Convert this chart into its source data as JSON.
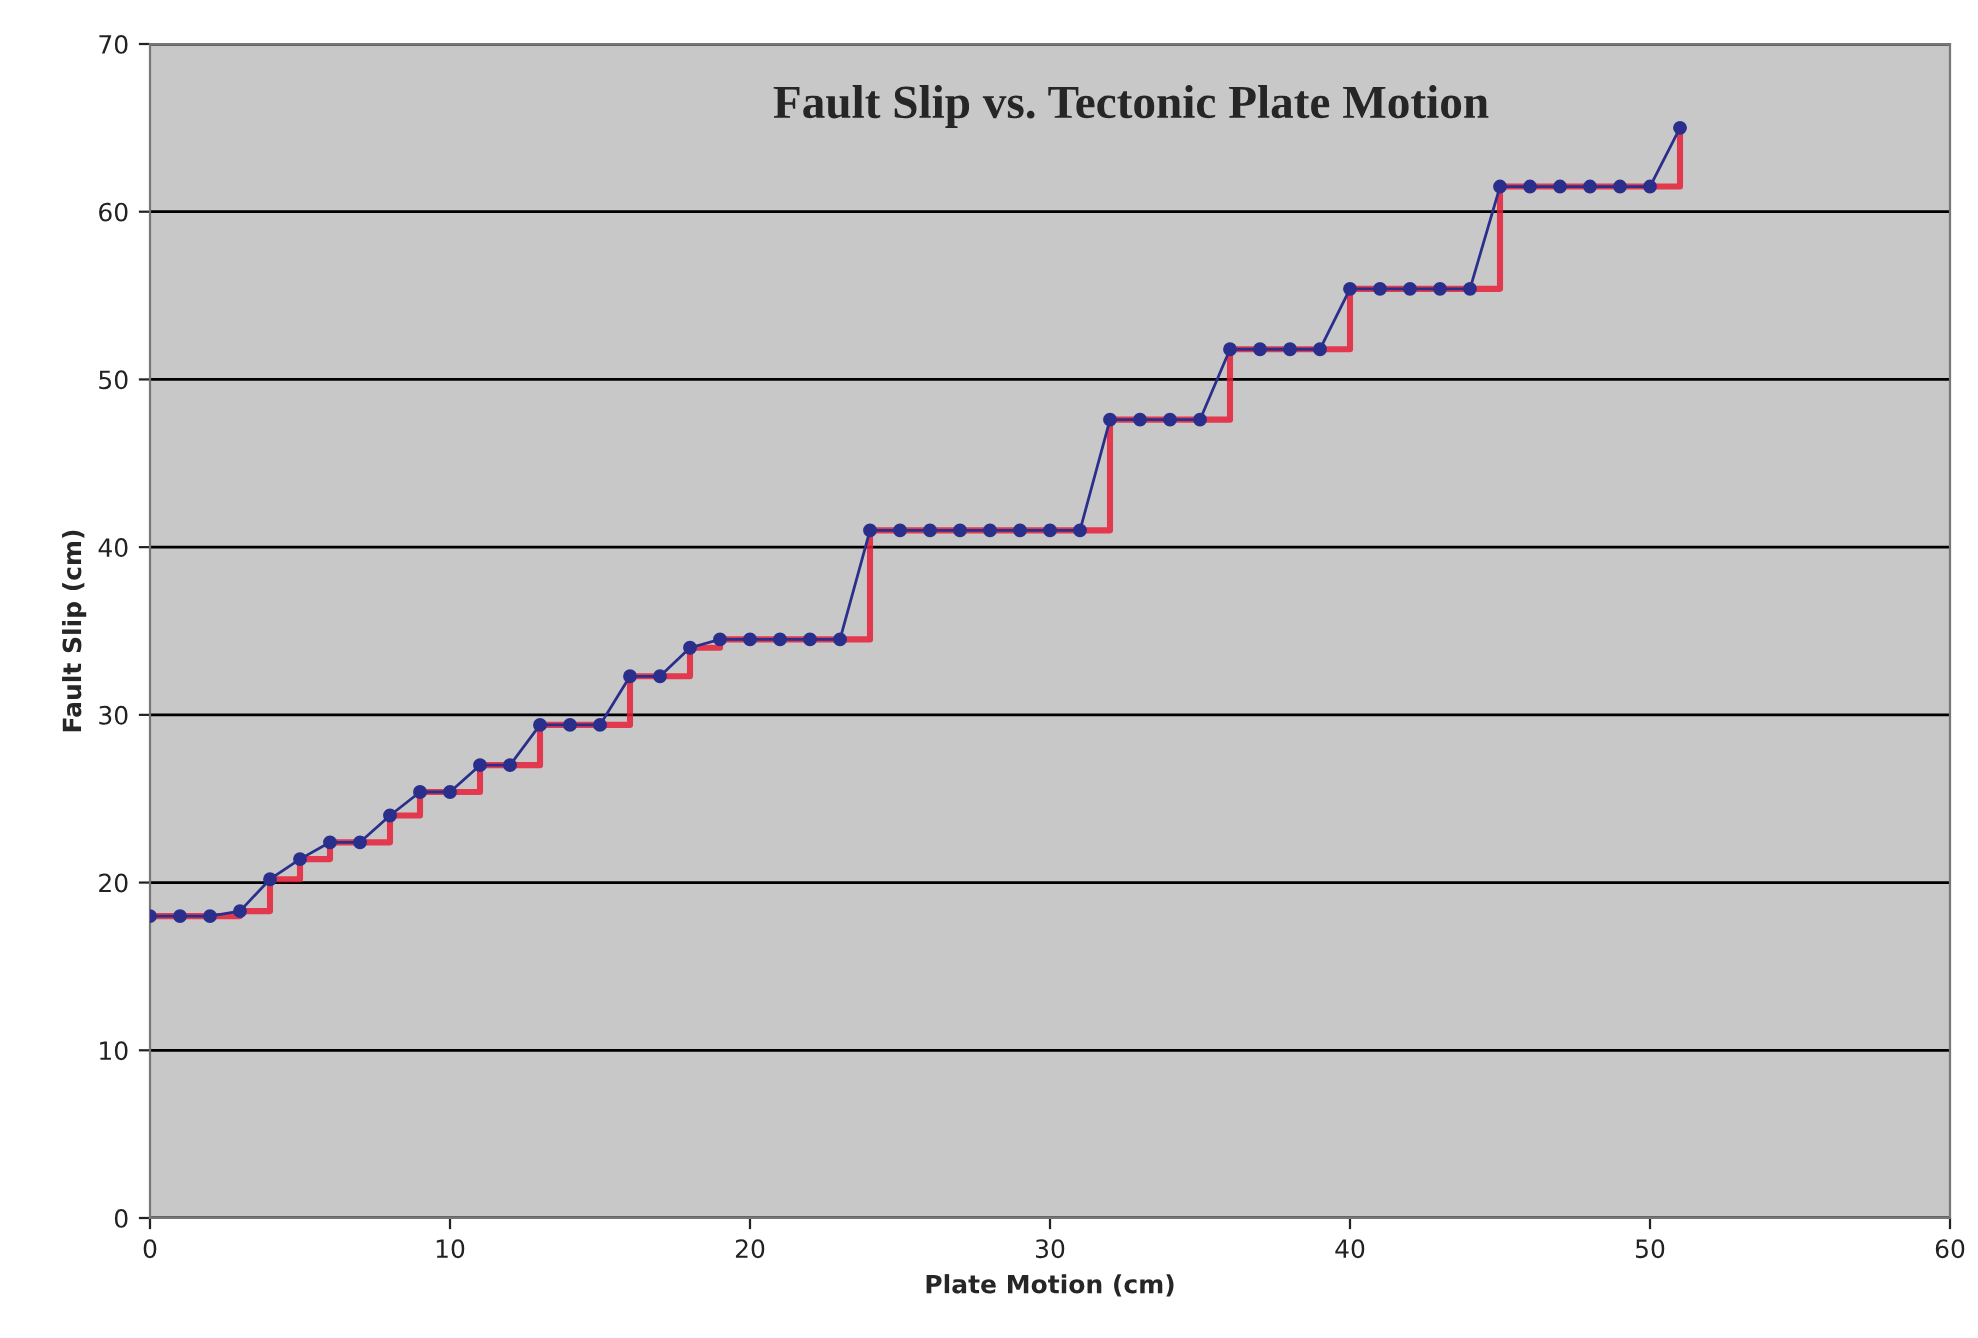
{
  "chart_data": {
    "type": "line",
    "title": "Fault Slip vs. Tectonic Plate Motion",
    "xlabel": "Plate Motion (cm)",
    "ylabel": "Fault Slip (cm)",
    "x": [
      0,
      1,
      2,
      3,
      4,
      5,
      6,
      7,
      8,
      9,
      10,
      11,
      12,
      13,
      14,
      15,
      16,
      17,
      18,
      19,
      20,
      21,
      22,
      23,
      24,
      25,
      26,
      27,
      28,
      29,
      30,
      31,
      32,
      33,
      34,
      35,
      36,
      37,
      38,
      39,
      40,
      41,
      42,
      43,
      44,
      45,
      46,
      47,
      48,
      49,
      50,
      51
    ],
    "series": [
      {
        "type": "step",
        "color": "#e8203a",
        "marker": "none",
        "values": [
          18,
          18,
          18,
          18.3,
          20.2,
          21.4,
          22.4,
          22.4,
          24,
          25.4,
          25.4,
          27,
          27,
          29.4,
          29.4,
          29.4,
          32.3,
          32.3,
          34,
          34.5,
          34.5,
          34.5,
          34.5,
          34.5,
          41,
          41,
          41,
          41,
          41,
          41,
          41,
          41,
          47.6,
          47.6,
          47.6,
          47.6,
          51.8,
          51.8,
          51.8,
          51.8,
          55.4,
          55.4,
          55.4,
          55.4,
          55.4,
          61.5,
          61.5,
          61.5,
          61.5,
          61.5,
          61.5,
          65
        ]
      },
      {
        "color": "#2b2f8c",
        "marker": "circle",
        "values": [
          18,
          18,
          18,
          18.3,
          20.2,
          21.4,
          22.4,
          22.4,
          24,
          25.4,
          25.4,
          27,
          27,
          29.4,
          29.4,
          29.4,
          32.3,
          32.3,
          34,
          34.5,
          34.5,
          34.5,
          34.5,
          34.5,
          41,
          41,
          41,
          41,
          41,
          41,
          41,
          41,
          47.6,
          47.6,
          47.6,
          47.6,
          51.8,
          51.8,
          51.8,
          51.8,
          55.4,
          55.4,
          55.4,
          55.4,
          55.4,
          61.5,
          61.5,
          61.5,
          61.5,
          61.5,
          61.5,
          65
        ]
      }
    ],
    "xlim": [
      0,
      60
    ],
    "xticks": [
      0,
      10,
      20,
      30,
      40,
      50,
      60
    ],
    "ylim": [
      0,
      70
    ],
    "yticks": [
      0,
      10,
      20,
      30,
      40,
      50,
      60,
      70
    ],
    "grid": "y",
    "legend": false
  }
}
